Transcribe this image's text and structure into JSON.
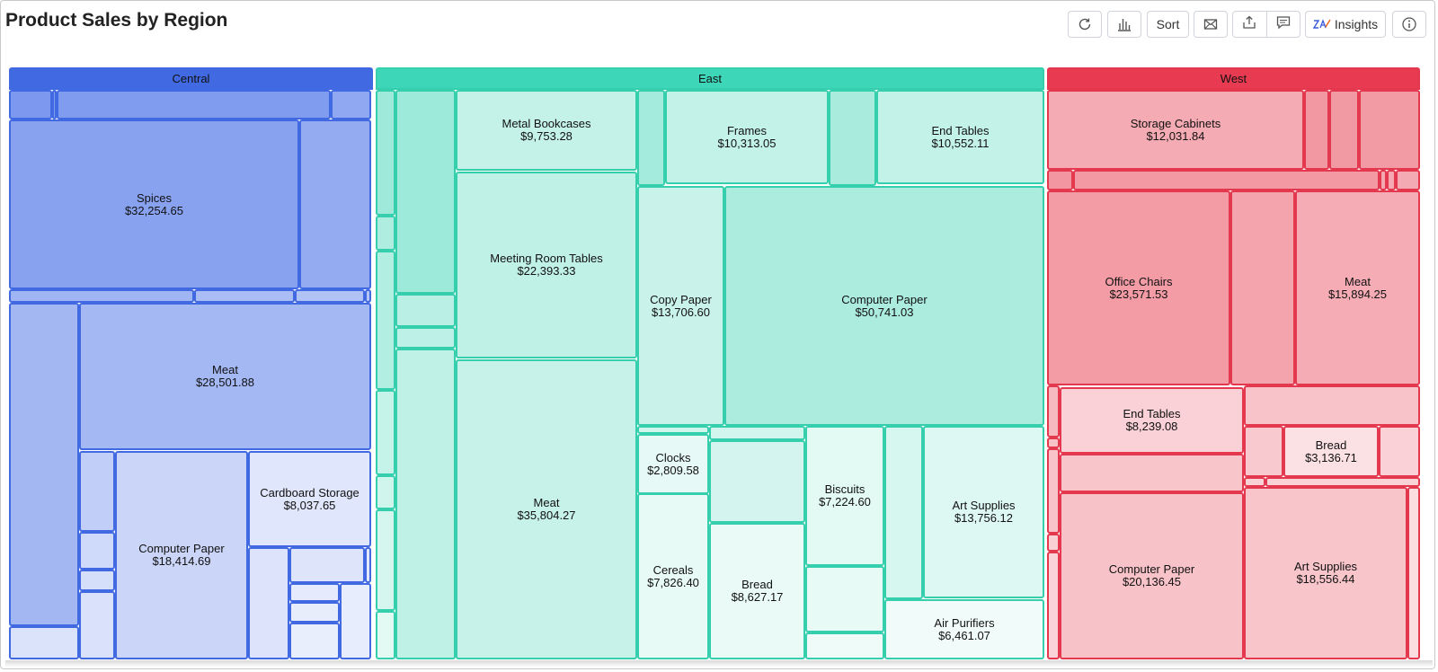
{
  "title": "Product Sales by Region",
  "toolbar": {
    "sort_label": "Sort",
    "insights_label": "Insights",
    "icons": [
      "refresh-icon",
      "bar-chart-icon",
      "mail-icon",
      "export-icon",
      "comment-icon",
      "insights-icon",
      "info-icon"
    ]
  },
  "colors": {
    "Central": {
      "header": "#4169e1",
      "border": "#4169e1",
      "fill": "#6f8eed"
    },
    "East": {
      "header": "#3dd6b8",
      "border": "#36cfae",
      "fill": "#93e7d6"
    },
    "West": {
      "header": "#e83b51",
      "border": "#e4384f",
      "fill": "#ef7e8b"
    }
  },
  "chart_data": {
    "type": "treemap",
    "title": "Product Sales by Region",
    "regions": [
      {
        "name": "Central",
        "items": [
          {
            "name": "Spices",
            "value": 32254.65
          },
          {
            "name": "Meat",
            "value": 28501.88
          },
          {
            "name": "Computer Paper",
            "value": 18414.69
          },
          {
            "name": "Cardboard Storage",
            "value": 8037.65
          }
        ]
      },
      {
        "name": "East",
        "items": [
          {
            "name": "Metal Bookcases",
            "value": 9753.28
          },
          {
            "name": "Frames",
            "value": 10313.05
          },
          {
            "name": "End Tables",
            "value": 10552.11
          },
          {
            "name": "Meeting Room Tables",
            "value": 22393.33
          },
          {
            "name": "Copy Paper",
            "value": 13706.6
          },
          {
            "name": "Computer Paper",
            "value": 50741.03
          },
          {
            "name": "Meat",
            "value": 35804.27
          },
          {
            "name": "Clocks",
            "value": 2809.58
          },
          {
            "name": "Biscuits",
            "value": 7224.6
          },
          {
            "name": "Art Supplies",
            "value": 13756.12
          },
          {
            "name": "Cereals",
            "value": 7826.4
          },
          {
            "name": "Bread",
            "value": 8627.17
          },
          {
            "name": "Air Purifiers",
            "value": 6461.07
          }
        ]
      },
      {
        "name": "West",
        "items": [
          {
            "name": "Storage Cabinets",
            "value": 12031.84
          },
          {
            "name": "Office Chairs",
            "value": 23571.53
          },
          {
            "name": "Meat",
            "value": 15894.25
          },
          {
            "name": "End Tables",
            "value": 8239.08
          },
          {
            "name": "Bread",
            "value": 3136.71
          },
          {
            "name": "Computer Paper",
            "value": 20136.45
          },
          {
            "name": "Art Supplies",
            "value": 18556.44
          }
        ]
      }
    ]
  }
}
